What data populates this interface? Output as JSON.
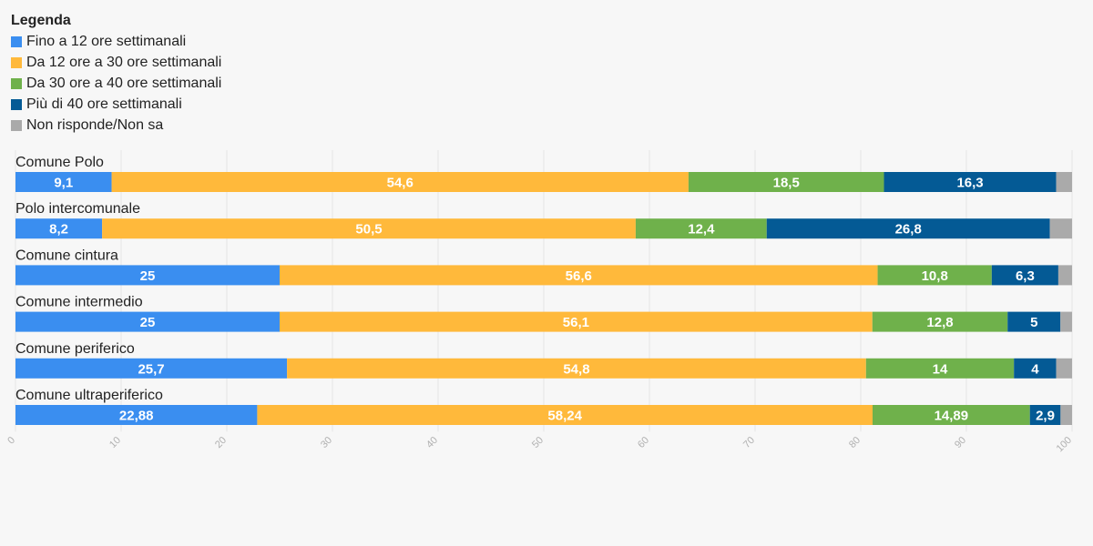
{
  "legend": {
    "title": "Legenda",
    "items": [
      {
        "label": "Fino a 12 ore settimanali",
        "color": "#3a8ef0"
      },
      {
        "label": "Da 12 ore a 30 ore settimanali",
        "color": "#ffb93b"
      },
      {
        "label": "Da 30 ore a 40 ore settimanali",
        "color": "#6fb14b"
      },
      {
        "label": "Più di 40 ore settimanali",
        "color": "#045a95"
      },
      {
        "label": "Non risponde/Non sa",
        "color": "#aaaaaa"
      }
    ]
  },
  "chart_data": {
    "type": "bar",
    "orientation": "horizontal",
    "stacked": true,
    "categories": [
      "Comune Polo",
      "Polo intercomunale",
      "Comune cintura",
      "Comune intermedio",
      "Comune periferico",
      "Comune ultraperiferico"
    ],
    "series": [
      {
        "name": "Fino a 12 ore settimanali",
        "color": "#3a8ef0",
        "values": [
          9.1,
          8.2,
          25,
          25,
          25.7,
          22.88
        ],
        "labels": [
          "9,1",
          "8,2",
          "25",
          "25",
          "25,7",
          "22,88"
        ]
      },
      {
        "name": "Da 12 ore a 30 ore settimanali",
        "color": "#ffb93b",
        "values": [
          54.6,
          50.5,
          56.6,
          56.1,
          54.8,
          58.24
        ],
        "labels": [
          "54,6",
          "50,5",
          "56,6",
          "56,1",
          "54,8",
          "58,24"
        ]
      },
      {
        "name": "Da 30 ore a 40 ore settimanali",
        "color": "#6fb14b",
        "values": [
          18.5,
          12.4,
          10.8,
          12.8,
          14,
          14.89
        ],
        "labels": [
          "18,5",
          "12,4",
          "10,8",
          "12,8",
          "14",
          "14,89"
        ]
      },
      {
        "name": "Più di 40 ore settimanali",
        "color": "#045a95",
        "values": [
          16.3,
          26.8,
          6.3,
          5,
          4,
          2.9
        ],
        "labels": [
          "16,3",
          "26,8",
          "6,3",
          "5",
          "4",
          "2,9"
        ]
      },
      {
        "name": "Non risponde/Non sa",
        "color": "#aaaaaa",
        "values": [
          1.5,
          2.1,
          1.3,
          1.1,
          1.5,
          1.09
        ],
        "labels": [
          "",
          "",
          "",
          "",
          "",
          ""
        ]
      }
    ],
    "xlim": [
      0,
      100
    ],
    "xticks": [
      "0",
      "10",
      "20",
      "30",
      "40",
      "50",
      "60",
      "70",
      "80",
      "90",
      "100"
    ],
    "grid": true,
    "legend_position": "top-left"
  }
}
